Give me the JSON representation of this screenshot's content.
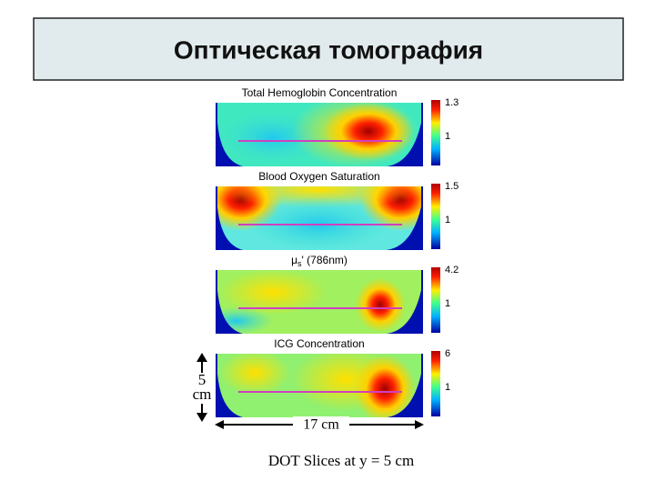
{
  "header": {
    "title": "Оптическая томография"
  },
  "figure": {
    "panels": [
      {
        "title": "Total Hemoglobin Concentration",
        "scale_max": "1.3",
        "scale_mid": "1"
      },
      {
        "title": "Blood Oxygen Saturation",
        "scale_max": "1.5",
        "scale_mid": "1"
      },
      {
        "title": {
          "symbol": "μ",
          "subscript": "s",
          "rest": "' (786nm)"
        },
        "scale_max": "4.2",
        "scale_mid": "1"
      },
      {
        "title": "ICG Concentration",
        "scale_max": "6",
        "scale_mid": "1"
      }
    ],
    "height_label": {
      "number": "5",
      "unit": "cm"
    },
    "width_label": "17 cm",
    "caption": "DOT Slices at y = 5 cm"
  }
}
